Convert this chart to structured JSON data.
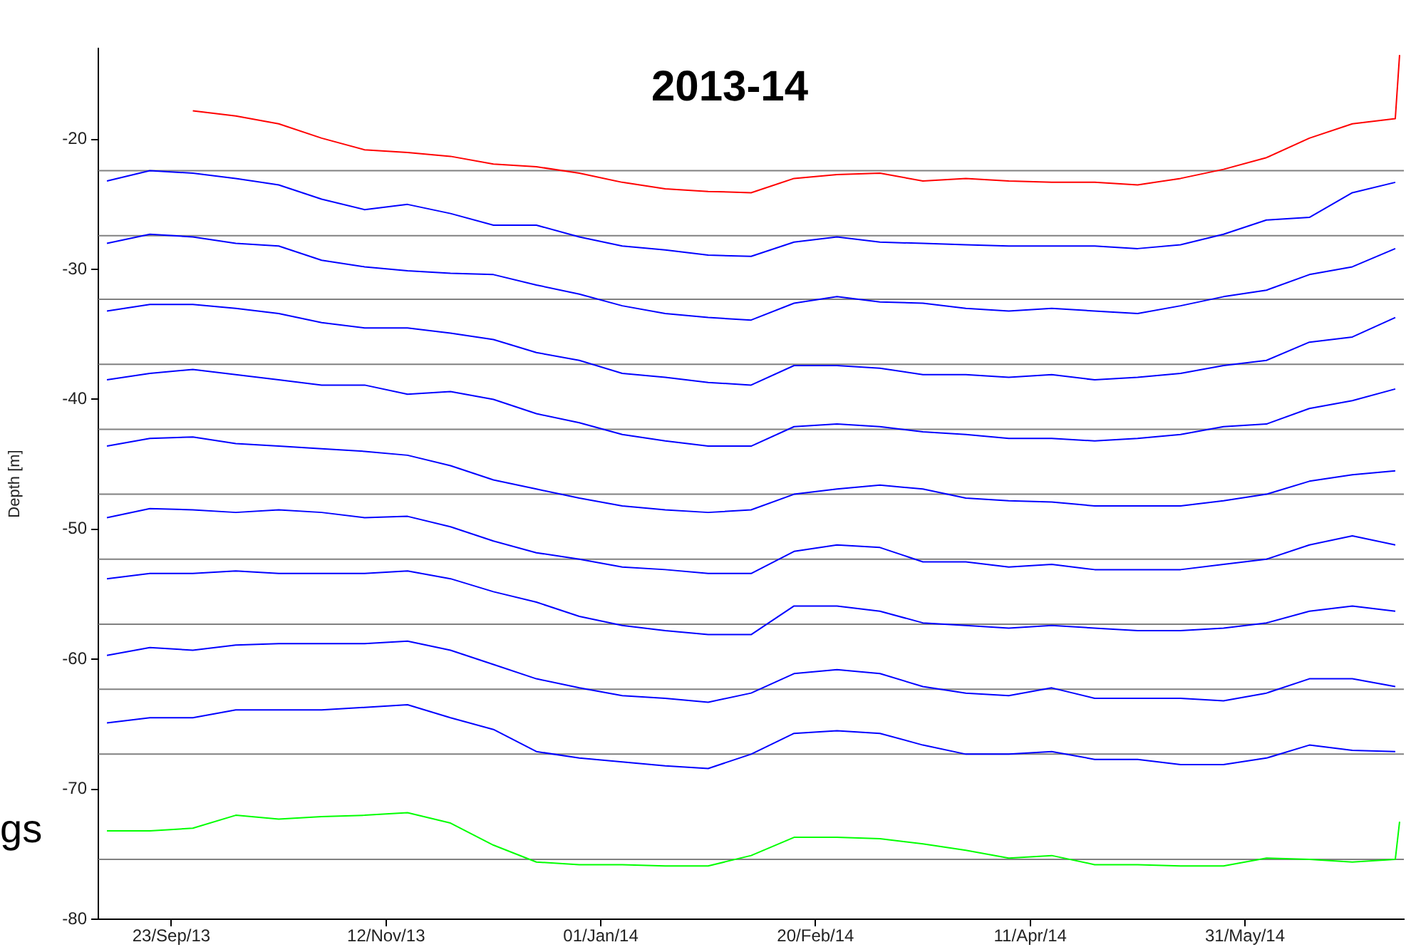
{
  "chart_data": {
    "type": "line",
    "title": "2013-14",
    "ylabel": "Depth [m]",
    "annotations": [
      "gs"
    ],
    "x": [
      "2013-09-08",
      "2013-09-18",
      "2013-09-28",
      "2013-10-08",
      "2013-10-18",
      "2013-10-28",
      "2013-11-07",
      "2013-11-17",
      "2013-11-27",
      "2013-12-07",
      "2013-12-17",
      "2013-12-27",
      "2014-01-06",
      "2014-01-16",
      "2014-01-26",
      "2014-02-05",
      "2014-02-15",
      "2014-02-25",
      "2014-03-07",
      "2014-03-17",
      "2014-03-27",
      "2014-04-06",
      "2014-04-16",
      "2014-04-26",
      "2014-05-06",
      "2014-05-16",
      "2014-05-26",
      "2014-06-05",
      "2014-06-15",
      "2014-06-25",
      "2014-07-05",
      "2014-07-06"
    ],
    "series": [
      {
        "color": "#ff0000",
        "values": [
          null,
          null,
          -17.8,
          -18.2,
          -18.8,
          -19.9,
          -20.8,
          -21,
          -21.3,
          -21.9,
          -22.1,
          -22.6,
          -23.3,
          -23.8,
          -24,
          -24.1,
          -23,
          -22.7,
          -22.6,
          -23.2,
          -23,
          -23.2,
          -23.3,
          -23.3,
          -23.5,
          -23,
          -22.3,
          -21.4,
          -19.9,
          -18.8,
          -18.4,
          -13.5
        ]
      },
      {
        "color": "#0000ff",
        "values": [
          -23.2,
          -22.4,
          -22.6,
          -23,
          -23.5,
          -24.6,
          -25.4,
          -25,
          -25.7,
          -26.6,
          -26.6,
          -27.5,
          -28.2,
          -28.5,
          -28.9,
          -29,
          -27.9,
          -27.5,
          -27.9,
          -28,
          -28.1,
          -28.2,
          -28.2,
          -28.2,
          -28.4,
          -28.1,
          -27.3,
          -26.2,
          -26,
          -24.1,
          -23.3,
          null
        ]
      },
      {
        "color": "#0000ff",
        "values": [
          -28,
          -27.3,
          -27.5,
          -28,
          -28.2,
          -29.3,
          -29.8,
          -30.1,
          -30.3,
          -30.4,
          -31.2,
          -31.9,
          -32.8,
          -33.4,
          -33.7,
          -33.9,
          -32.6,
          -32.1,
          -32.5,
          -32.6,
          -33,
          -33.2,
          -33,
          -33.2,
          -33.4,
          -32.8,
          -32.1,
          -31.6,
          -30.4,
          -29.8,
          -28.4,
          null
        ]
      },
      {
        "color": "#0000ff",
        "values": [
          -33.2,
          -32.7,
          -32.7,
          -33,
          -33.4,
          -34.1,
          -34.5,
          -34.5,
          -34.9,
          -35.4,
          -36.4,
          -37,
          -38,
          -38.3,
          -38.7,
          -38.9,
          -37.4,
          -37.4,
          -37.6,
          -38.1,
          -38.1,
          -38.3,
          -38.1,
          -38.5,
          -38.3,
          -38,
          -37.4,
          -37,
          -35.6,
          -35.2,
          -33.7,
          null
        ]
      },
      {
        "color": "#0000ff",
        "values": [
          -38.5,
          -38,
          -37.7,
          -38.1,
          -38.5,
          -38.9,
          -38.9,
          -39.6,
          -39.4,
          -40,
          -41.1,
          -41.8,
          -42.7,
          -43.2,
          -43.6,
          -43.6,
          -42.1,
          -41.9,
          -42.1,
          -42.5,
          -42.7,
          -43,
          -43,
          -43.2,
          -43,
          -42.7,
          -42.1,
          -41.9,
          -40.7,
          -40.1,
          -39.2,
          null
        ]
      },
      {
        "color": "#0000ff",
        "values": [
          -43.6,
          -43,
          -42.9,
          -43.4,
          -43.6,
          -43.8,
          -44,
          -44.3,
          -45.1,
          -46.2,
          -46.9,
          -47.6,
          -48.2,
          -48.5,
          -48.7,
          -48.5,
          -47.3,
          -46.9,
          -46.6,
          -46.9,
          -47.6,
          -47.8,
          -47.9,
          -48.2,
          -48.2,
          -48.2,
          -47.8,
          -47.3,
          -46.3,
          -45.8,
          -45.5,
          null
        ]
      },
      {
        "color": "#0000ff",
        "values": [
          -49.1,
          -48.4,
          -48.5,
          -48.7,
          -48.5,
          -48.7,
          -49.1,
          -49,
          -49.8,
          -50.9,
          -51.8,
          -52.3,
          -52.9,
          -53.1,
          -53.4,
          -53.4,
          -51.7,
          -51.2,
          -51.4,
          -52.5,
          -52.5,
          -52.9,
          -52.7,
          -53.1,
          -53.1,
          -53.1,
          -52.7,
          -52.3,
          -51.2,
          -50.5,
          -51.2,
          null
        ]
      },
      {
        "color": "#0000ff",
        "values": [
          -53.8,
          -53.4,
          -53.4,
          -53.2,
          -53.4,
          -53.4,
          -53.4,
          -53.2,
          -53.8,
          -54.8,
          -55.6,
          -56.7,
          -57.4,
          -57.8,
          -58.1,
          -58.1,
          -55.9,
          -55.9,
          -56.3,
          -57.2,
          -57.4,
          -57.6,
          -57.4,
          -57.6,
          -57.8,
          -57.8,
          -57.6,
          -57.2,
          -56.3,
          -55.9,
          -56.3,
          null
        ]
      },
      {
        "color": "#0000ff",
        "values": [
          -59.7,
          -59.1,
          -59.3,
          -58.9,
          -58.8,
          -58.8,
          -58.8,
          -58.6,
          -59.3,
          -60.4,
          -61.5,
          -62.2,
          -62.8,
          -63,
          -63.3,
          -62.6,
          -61.1,
          -60.8,
          -61.1,
          -62.1,
          -62.6,
          -62.8,
          -62.2,
          -63,
          -63,
          -63,
          -63.2,
          -62.6,
          -61.5,
          -61.5,
          -62.1,
          null
        ]
      },
      {
        "color": "#0000ff",
        "values": [
          -64.9,
          -64.5,
          -64.5,
          -63.9,
          -63.9,
          -63.9,
          -63.7,
          -63.5,
          -64.5,
          -65.4,
          -67.1,
          -67.6,
          -67.9,
          -68.2,
          -68.4,
          -67.3,
          -65.7,
          -65.5,
          -65.7,
          -66.6,
          -67.3,
          -67.3,
          -67.1,
          -67.7,
          -67.7,
          -68.1,
          -68.1,
          -67.6,
          -66.6,
          -67,
          -67.1,
          null
        ]
      },
      {
        "color": "#00ff00",
        "values": [
          -73.2,
          -73.2,
          -73,
          -72,
          -72.3,
          -72.1,
          -72,
          -71.8,
          -72.6,
          -74.3,
          -75.6,
          -75.8,
          -75.8,
          -75.9,
          -75.9,
          -75.1,
          -73.7,
          -73.7,
          -73.8,
          -74.2,
          -74.7,
          -75.3,
          -75.1,
          -75.8,
          -75.8,
          -75.9,
          -75.9,
          -75.3,
          -75.4,
          -75.6,
          -75.4,
          -72.5
        ]
      }
    ],
    "xlim": [
      "2013-09-06",
      "2014-07-07"
    ],
    "xticks": [
      {
        "value": "2013-09-23",
        "label": "23/Sep/13"
      },
      {
        "value": "2013-11-12",
        "label": "12/Nov/13"
      },
      {
        "value": "2014-01-01",
        "label": "01/Jan/14"
      },
      {
        "value": "2014-02-20",
        "label": "20/Feb/14"
      },
      {
        "value": "2014-04-11",
        "label": "11/Apr/14"
      },
      {
        "value": "2014-05-31",
        "label": "31/May/14"
      }
    ],
    "ylim": [
      -80,
      -13
    ],
    "yticks": [
      -80,
      -70,
      -60,
      -50,
      -40,
      -30,
      -20
    ],
    "ref_lines": [
      {
        "axis": "y",
        "value": -22.4,
        "color": "#808080"
      },
      {
        "axis": "y",
        "value": -27.4,
        "color": "#808080"
      },
      {
        "axis": "y",
        "value": -32.3,
        "color": "#808080"
      },
      {
        "axis": "y",
        "value": -37.3,
        "color": "#808080"
      },
      {
        "axis": "y",
        "value": -42.3,
        "color": "#808080"
      },
      {
        "axis": "y",
        "value": -47.3,
        "color": "#808080"
      },
      {
        "axis": "y",
        "value": -52.3,
        "color": "#808080"
      },
      {
        "axis": "y",
        "value": -57.3,
        "color": "#808080"
      },
      {
        "axis": "y",
        "value": -62.3,
        "color": "#808080"
      },
      {
        "axis": "y",
        "value": -67.3,
        "color": "#808080"
      },
      {
        "axis": "y",
        "value": -75.4,
        "color": "#808080"
      }
    ],
    "grid": false,
    "legend": false,
    "marker": "none",
    "line_style": "solid"
  }
}
